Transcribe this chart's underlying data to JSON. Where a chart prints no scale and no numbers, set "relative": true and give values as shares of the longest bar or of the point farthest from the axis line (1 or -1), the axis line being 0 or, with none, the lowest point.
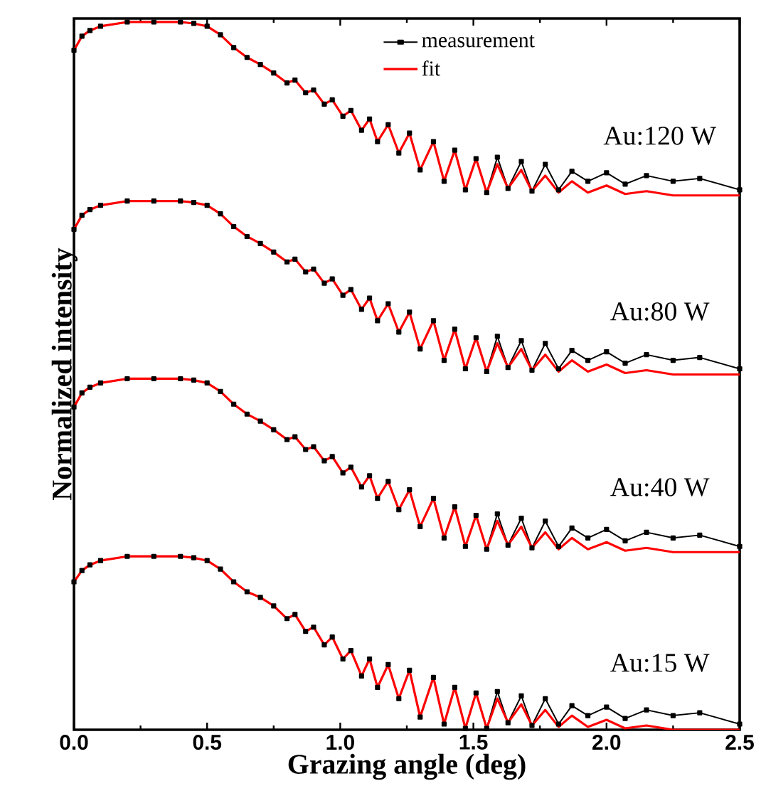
{
  "chart_data": {
    "type": "line",
    "relative": true,
    "xlabel": "Grazing angle (deg)",
    "ylabel": "Normalized intensity",
    "x": [
      0,
      0.03,
      0.06,
      0.1,
      0.2,
      0.3,
      0.4,
      0.45,
      0.5,
      0.55,
      0.6,
      0.65,
      0.7,
      0.75,
      0.8,
      0.83,
      0.87,
      0.9,
      0.94,
      0.97,
      1.01,
      1.04,
      1.08,
      1.11,
      1.14,
      1.18,
      1.22,
      1.26,
      1.3,
      1.35,
      1.39,
      1.43,
      1.47,
      1.51,
      1.55,
      1.59,
      1.63,
      1.68,
      1.72,
      1.77,
      1.82,
      1.87,
      1.93,
      2.0,
      2.07,
      2.15,
      2.25,
      2.35,
      2.5
    ],
    "xlim": [
      0,
      2.5
    ],
    "xticks": [
      {
        "value": 0,
        "label": "0.0"
      },
      {
        "value": 0.5,
        "label": "0.5"
      },
      {
        "value": 1,
        "label": "1.0"
      },
      {
        "value": 1.5,
        "label": "1.5"
      },
      {
        "value": 2,
        "label": "2.0"
      },
      {
        "value": 2.5,
        "label": "2.5"
      }
    ],
    "legend": "top",
    "grid": false,
    "line_style": "solid",
    "series": [
      {
        "name": "measurement",
        "color": "#000000",
        "marker": "square",
        "values": [
          0.96,
          0.98,
          0.988,
          0.994,
          1,
          1,
          1,
          0.998,
          0.994,
          0.982,
          0.964,
          0.95,
          0.94,
          0.928,
          0.914,
          0.918,
          0.9,
          0.904,
          0.884,
          0.89,
          0.867,
          0.875,
          0.847,
          0.863,
          0.831,
          0.855,
          0.815,
          0.843,
          0.791,
          0.831,
          0.775,
          0.819,
          0.763,
          0.807,
          0.759,
          0.809,
          0.765,
          0.803,
          0.761,
          0.799,
          0.763,
          0.789,
          0.775,
          0.787,
          0.771,
          0.783,
          0.775,
          0.779,
          0.763
        ]
      },
      {
        "name": "fit",
        "color": "#ff0000",
        "marker": "none",
        "values": [
          0.96,
          0.98,
          0.988,
          0.994,
          1,
          1,
          1,
          0.998,
          0.994,
          0.982,
          0.964,
          0.95,
          0.94,
          0.928,
          0.914,
          0.918,
          0.9,
          0.904,
          0.884,
          0.89,
          0.867,
          0.875,
          0.847,
          0.863,
          0.831,
          0.855,
          0.815,
          0.843,
          0.791,
          0.831,
          0.775,
          0.819,
          0.763,
          0.807,
          0.759,
          0.799,
          0.765,
          0.791,
          0.761,
          0.783,
          0.759,
          0.775,
          0.759,
          0.769,
          0.757,
          0.761,
          0.755,
          0.755,
          0.755
        ]
      },
      {
        "color": "#000000",
        "marker": "square",
        "values": [
          0.707,
          0.727,
          0.735,
          0.741,
          0.747,
          0.747,
          0.747,
          0.745,
          0.741,
          0.729,
          0.711,
          0.697,
          0.687,
          0.675,
          0.661,
          0.665,
          0.647,
          0.651,
          0.631,
          0.637,
          0.614,
          0.622,
          0.594,
          0.61,
          0.578,
          0.602,
          0.562,
          0.59,
          0.538,
          0.578,
          0.522,
          0.566,
          0.51,
          0.554,
          0.506,
          0.556,
          0.512,
          0.55,
          0.508,
          0.546,
          0.51,
          0.536,
          0.522,
          0.534,
          0.518,
          0.53,
          0.522,
          0.526,
          0.51
        ]
      },
      {
        "color": "#ff0000",
        "marker": "none",
        "values": [
          0.707,
          0.727,
          0.735,
          0.741,
          0.747,
          0.747,
          0.747,
          0.745,
          0.741,
          0.729,
          0.711,
          0.697,
          0.687,
          0.675,
          0.661,
          0.665,
          0.647,
          0.651,
          0.631,
          0.637,
          0.614,
          0.622,
          0.594,
          0.61,
          0.578,
          0.602,
          0.562,
          0.59,
          0.538,
          0.578,
          0.522,
          0.566,
          0.51,
          0.554,
          0.506,
          0.546,
          0.512,
          0.538,
          0.508,
          0.53,
          0.506,
          0.522,
          0.506,
          0.516,
          0.504,
          0.508,
          0.502,
          0.502,
          0.502
        ]
      },
      {
        "color": "#000000",
        "marker": "square",
        "values": [
          0.456,
          0.476,
          0.484,
          0.49,
          0.496,
          0.496,
          0.496,
          0.494,
          0.49,
          0.478,
          0.46,
          0.446,
          0.436,
          0.424,
          0.41,
          0.414,
          0.396,
          0.4,
          0.38,
          0.386,
          0.363,
          0.371,
          0.343,
          0.359,
          0.327,
          0.351,
          0.311,
          0.339,
          0.287,
          0.327,
          0.271,
          0.315,
          0.259,
          0.303,
          0.255,
          0.305,
          0.261,
          0.299,
          0.257,
          0.295,
          0.259,
          0.285,
          0.271,
          0.283,
          0.267,
          0.279,
          0.271,
          0.275,
          0.259
        ]
      },
      {
        "color": "#ff0000",
        "marker": "none",
        "values": [
          0.456,
          0.476,
          0.484,
          0.49,
          0.496,
          0.496,
          0.496,
          0.494,
          0.49,
          0.478,
          0.46,
          0.446,
          0.436,
          0.424,
          0.41,
          0.414,
          0.396,
          0.4,
          0.38,
          0.386,
          0.363,
          0.371,
          0.343,
          0.359,
          0.327,
          0.351,
          0.311,
          0.339,
          0.287,
          0.327,
          0.271,
          0.315,
          0.259,
          0.303,
          0.255,
          0.295,
          0.261,
          0.287,
          0.257,
          0.279,
          0.255,
          0.271,
          0.255,
          0.265,
          0.253,
          0.257,
          0.251,
          0.251,
          0.251
        ]
      },
      {
        "color": "#000000",
        "marker": "square",
        "values": [
          0.209,
          0.225,
          0.233,
          0.239,
          0.245,
          0.245,
          0.245,
          0.243,
          0.239,
          0.227,
          0.209,
          0.195,
          0.187,
          0.175,
          0.157,
          0.163,
          0.139,
          0.145,
          0.12,
          0.131,
          0.1,
          0.112,
          0.076,
          0.1,
          0.06,
          0.092,
          0.044,
          0.084,
          0.018,
          0.074,
          0.008,
          0.06,
          0.002,
          0.052,
          0.002,
          0.054,
          0.01,
          0.048,
          0.006,
          0.044,
          0.008,
          0.034,
          0.02,
          0.032,
          0.016,
          0.028,
          0.02,
          0.024,
          0.008
        ]
      },
      {
        "color": "#ff0000",
        "marker": "none",
        "values": [
          0.209,
          0.225,
          0.233,
          0.239,
          0.245,
          0.245,
          0.245,
          0.243,
          0.239,
          0.227,
          0.209,
          0.195,
          0.187,
          0.175,
          0.157,
          0.163,
          0.139,
          0.145,
          0.12,
          0.131,
          0.1,
          0.112,
          0.076,
          0.1,
          0.06,
          0.092,
          0.044,
          0.084,
          0.018,
          0.074,
          0.008,
          0.06,
          0.002,
          0.052,
          0.002,
          0.044,
          0.01,
          0.036,
          0.006,
          0.028,
          0.004,
          0.02,
          0.004,
          0.014,
          0.002,
          0.006,
          0,
          0,
          0
        ]
      }
    ],
    "annotations": [
      "Au:120 W",
      "Au:80 W",
      "Au:40 W",
      "Au:15 W"
    ]
  }
}
